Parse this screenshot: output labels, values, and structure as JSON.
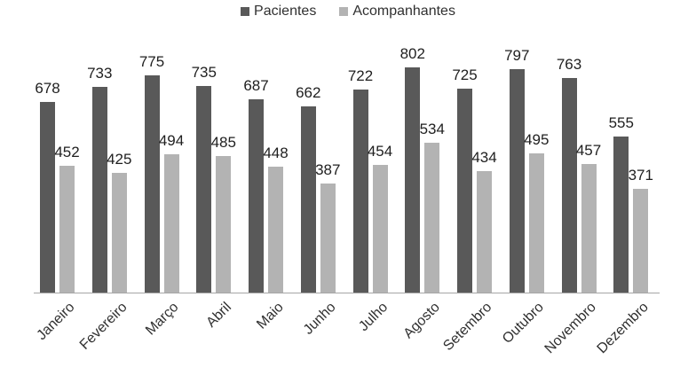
{
  "chart_data": {
    "type": "bar",
    "title": "",
    "xlabel": "",
    "ylabel": "",
    "categories": [
      "Janeiro",
      "Fevereiro",
      "Março",
      "Abril",
      "Maio",
      "Junho",
      "Julho",
      "Agosto",
      "Setembro",
      "Outubro",
      "Novembro",
      "Dezembro"
    ],
    "series": [
      {
        "name": "Pacientes",
        "color": "#595959",
        "values": [
          678,
          733,
          775,
          735,
          687,
          662,
          722,
          802,
          725,
          797,
          763,
          555
        ]
      },
      {
        "name": "Acompanhantes",
        "color": "#b3b3b3",
        "values": [
          452,
          425,
          494,
          485,
          448,
          387,
          454,
          534,
          434,
          495,
          457,
          371
        ]
      }
    ],
    "ylim": [
      0,
      900
    ],
    "grid": false,
    "data_labels": true,
    "legend_position": "top-center",
    "x_tick_rotation_deg": 45
  },
  "colors": {
    "axis_line": "#a6a6a6",
    "label_text": "#1f1f1f"
  }
}
